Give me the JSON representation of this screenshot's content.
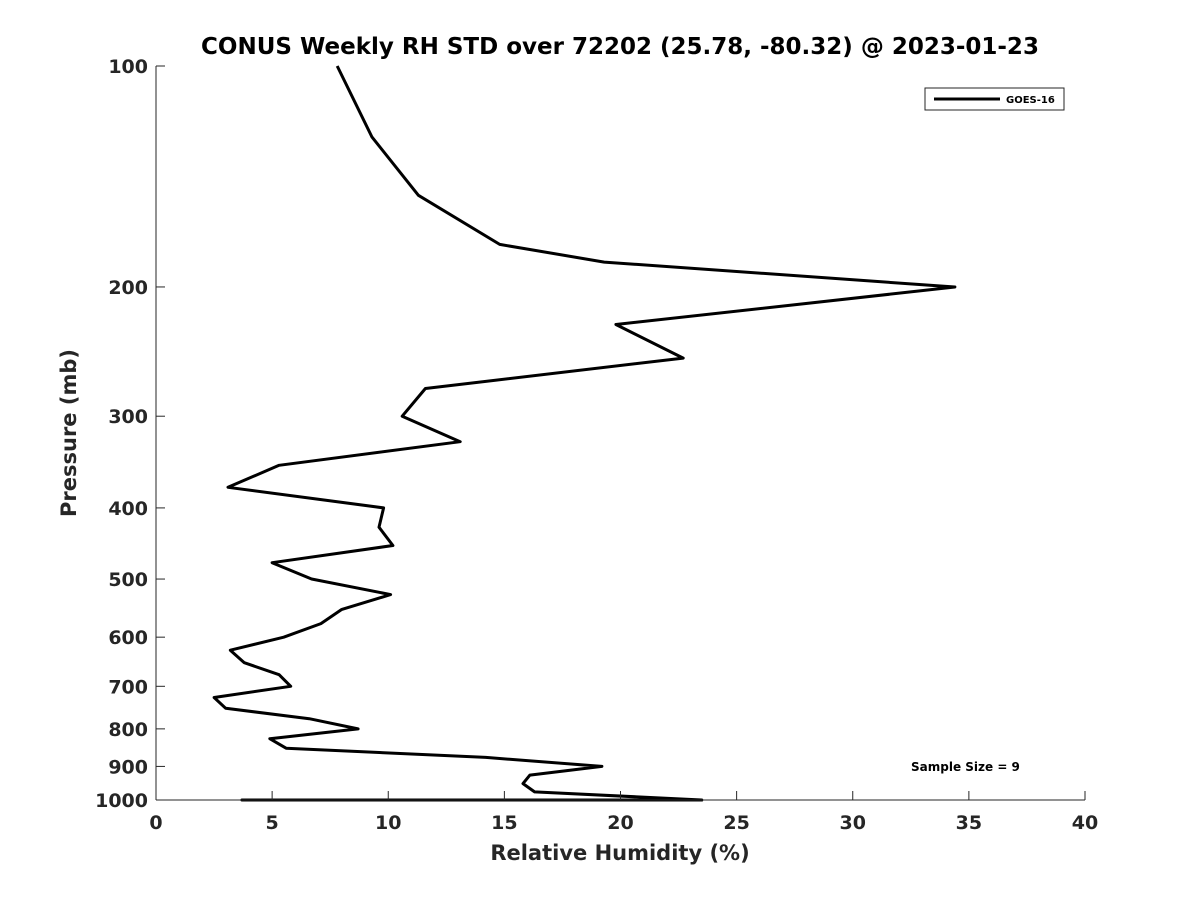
{
  "chart_data": {
    "type": "line",
    "title": "CONUS Weekly RH STD over 72202 (25.78, -80.32) @ 2023-01-23",
    "xlabel": "Relative Humidity (%)",
    "ylabel": "Pressure (mb)",
    "xlim": [
      0,
      40
    ],
    "ylim": [
      100,
      1000
    ],
    "yscale": "log",
    "yreversed": true,
    "grid": false,
    "legend_position": "top-right",
    "xticks": [
      0,
      5,
      10,
      15,
      20,
      25,
      30,
      35,
      40
    ],
    "xtick_labels": [
      "0",
      "5",
      "10",
      "15",
      "20",
      "25",
      "30",
      "35",
      "40"
    ],
    "yticks": [
      100,
      200,
      300,
      400,
      500,
      600,
      700,
      800,
      900,
      1000
    ],
    "ytick_labels": [
      "100",
      "200",
      "300",
      "400",
      "500",
      "600",
      "700",
      "800",
      "900",
      "1000"
    ],
    "series": [
      {
        "name": "GOES-16",
        "color": "#000000",
        "points": [
          [
            7.8,
            100
          ],
          [
            9.3,
            125
          ],
          [
            11.3,
            150
          ],
          [
            14.8,
            175
          ],
          [
            19.3,
            185
          ],
          [
            34.4,
            200
          ],
          [
            19.8,
            225
          ],
          [
            22.7,
            250
          ],
          [
            11.6,
            275
          ],
          [
            10.6,
            300
          ],
          [
            13.1,
            325
          ],
          [
            5.3,
            350
          ],
          [
            3.1,
            375
          ],
          [
            9.8,
            400
          ],
          [
            9.6,
            425
          ],
          [
            10.2,
            450
          ],
          [
            5.0,
            475
          ],
          [
            6.7,
            500
          ],
          [
            10.1,
            525
          ],
          [
            8.0,
            550
          ],
          [
            7.1,
            575
          ],
          [
            5.5,
            600
          ],
          [
            3.2,
            625
          ],
          [
            3.8,
            650
          ],
          [
            5.3,
            675
          ],
          [
            5.8,
            700
          ],
          [
            2.5,
            725
          ],
          [
            3.0,
            750
          ],
          [
            6.6,
            775
          ],
          [
            8.7,
            800
          ],
          [
            4.9,
            825
          ],
          [
            5.6,
            850
          ],
          [
            14.2,
            875
          ],
          [
            19.2,
            900
          ],
          [
            16.1,
            925
          ],
          [
            15.8,
            950
          ],
          [
            16.3,
            975
          ],
          [
            23.5,
            1000
          ],
          [
            19.8,
            1000
          ],
          [
            13.1,
            1000
          ],
          [
            11.5,
            1000
          ],
          [
            3.7,
            1000
          ],
          [
            4.0,
            1000
          ],
          [
            6.4,
            1000
          ]
        ]
      }
    ],
    "annotations": [
      "Sample Size = 9"
    ]
  }
}
